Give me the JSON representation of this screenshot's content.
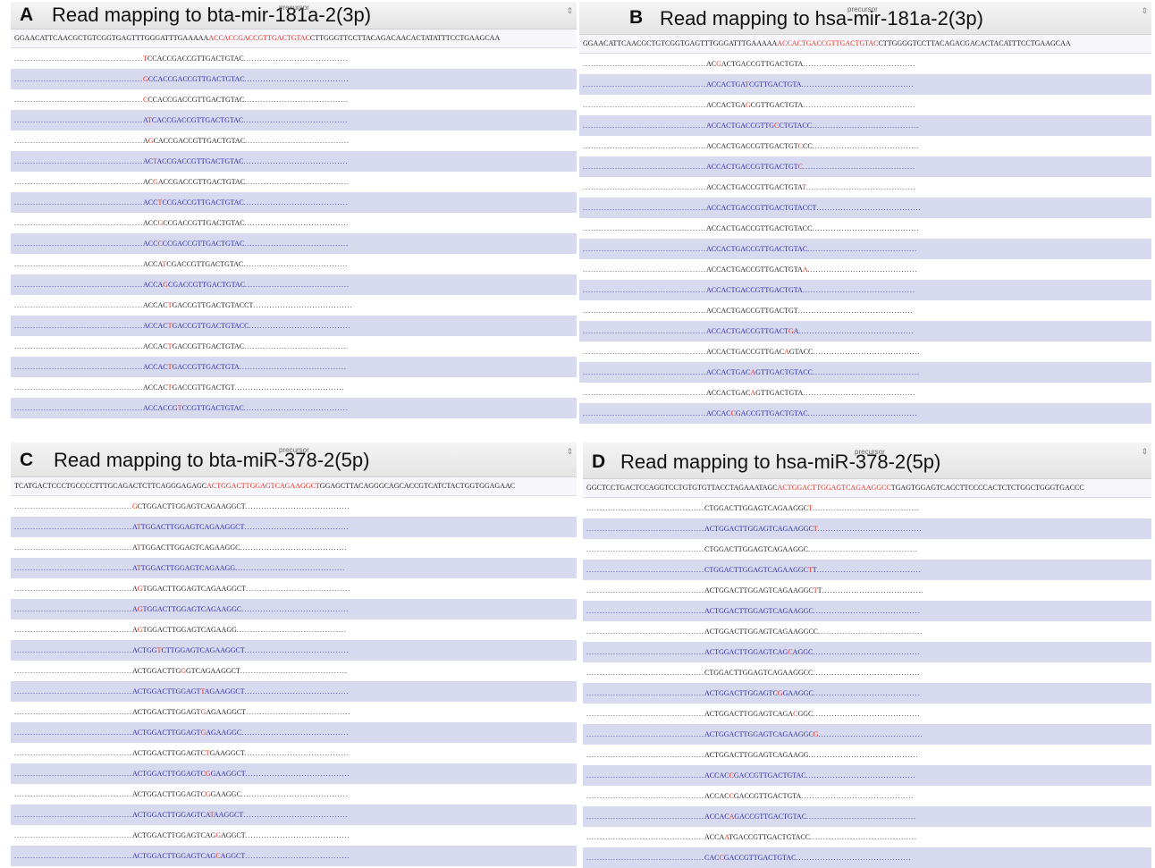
{
  "panels": [
    {
      "id": "A",
      "letter": "A",
      "title": "Read mapping to bta-mir-181a-2(3p)",
      "sub": "precursor",
      "ref": {
        "pre": "GGAACATTCAACGCTGTCGGTGAGTTTGGGATTTGAAAAA",
        "mature": "ACCACCGACCGTTGACTGTAC",
        "post": "CTTGGGTTCCTTACAGACAACACTATATTTCCTGAAGCAA"
      },
      "pad": 68,
      "rows": [
        [
          48,
          "",
          "T",
          "CCACCGACCGTTGACTGTAC"
        ],
        [
          48,
          "",
          "G",
          "CCACCGACCGTTGACTGTAC"
        ],
        [
          48,
          "",
          "C",
          "CCACCGACCGTTGACTGTAC"
        ],
        [
          48,
          "A",
          "T",
          "CACCGACCGTTGACTGTAC"
        ],
        [
          48,
          "A",
          "G",
          "CACCGACCGTTGACTGTAC"
        ],
        [
          48,
          "AC",
          "T",
          "ACCGACCGTTGACTGTAC"
        ],
        [
          48,
          "AC",
          "G",
          "ACCGACCGTTGACTGTAC"
        ],
        [
          48,
          "ACC",
          "T",
          "CCGACCGTTGACTGTAC"
        ],
        [
          48,
          "ACC",
          "G",
          "CCGACCGTTGACTGTAC"
        ],
        [
          48,
          "ACC",
          "C",
          "CCGACCGTTGACTGTAC"
        ],
        [
          48,
          "ACCA",
          "T",
          "CGACCGTTGACTGTAC"
        ],
        [
          48,
          "ACCA",
          "G",
          "CGACCGTTGACTGTAC"
        ],
        [
          48,
          "ACCAC",
          "T",
          "GACCGTTGACTGTACCT"
        ],
        [
          48,
          "ACCAC",
          "T",
          "GACCGTTGACTGTACC"
        ],
        [
          48,
          "ACCAC",
          "T",
          "GACCGTTGACTGTAC"
        ],
        [
          48,
          "ACCAC",
          "T",
          "GACCGTTGACTGTA"
        ],
        [
          48,
          "ACCAC",
          "T",
          "GACCGTTGACTGT"
        ],
        [
          48,
          "ACCACCG",
          "T",
          "CCGTTGACTGTAC"
        ]
      ]
    },
    {
      "id": "B",
      "letter": "B",
      "title": "Read mapping to hsa-mir-181a-2(3p)",
      "sub": "precursor",
      "ref": {
        "pre": "GGAACATTCAACGCTGTCGGTGAGTTTGGGATTTGAAAAA",
        "mature": "ACCACTGACCGTTGACTGTAC",
        "post": "CTTGGGGTCCTTACAGACGACACTACATTTCCTGAAGCAA"
      },
      "pad": 68,
      "rows": [
        [
          46,
          "AC",
          "G",
          "ACTGACCGTTGACTGTA"
        ],
        [
          46,
          "ACCACTGA",
          "T",
          "CGTTGACTGTA"
        ],
        [
          46,
          "ACCACTGA",
          "G",
          "CGTTGACTGTA"
        ],
        [
          46,
          "ACCACTGACCGTTG",
          "C",
          "CTGTACC"
        ],
        [
          46,
          "ACCACTGACCGTTGACTGT",
          "C",
          "CC"
        ],
        [
          46,
          "ACCACTGACCGTTGACTGT",
          "C",
          ""
        ],
        [
          46,
          "ACCACTGACCGTTGACTGTA",
          "T",
          ""
        ],
        [
          46,
          "ACCACTGACCGTTGACTGTACCT",
          "",
          ""
        ],
        [
          46,
          "ACCACTGACCGTTGACTGTACC",
          "",
          ""
        ],
        [
          46,
          "ACCACTGACCGTTGACTGTAC",
          "",
          ""
        ],
        [
          46,
          "ACCACTGACCGTTGACTGTA",
          "A",
          ""
        ],
        [
          46,
          "ACCACTGACCGTTGACTGTA",
          "",
          ""
        ],
        [
          46,
          "ACCACTGACCGTTGACTGT",
          "",
          ""
        ],
        [
          46,
          "ACCACTGACCGTTGACT",
          "G",
          "A"
        ],
        [
          46,
          "ACCACTGACCGTTGAC",
          "A",
          "GTACC"
        ],
        [
          46,
          "ACCACTGAC",
          "A",
          "GTTGACTGTACC"
        ],
        [
          46,
          "ACCACTGAC",
          "A",
          "GTTGACTGTA"
        ],
        [
          46,
          "ACCAC",
          "C",
          "GACCGTTGACTGTAC"
        ]
      ]
    },
    {
      "id": "C",
      "letter": "C",
      "title": "Read mapping to bta-miR-378-2(5p)",
      "sub": "precursor",
      "ref": {
        "pre": "TCATGACTCCCTGCCCCTTTGCAGACTCTTCAGGGAGAGC",
        "mature": "ACTGGACTTGGAGTCAGAAGGCT",
        "post": "GGAGCTTACAGGGCAGCACCGTCATCTACTGGTGGAGAAC"
      },
      "pad": 66,
      "rows": [
        [
          44,
          "",
          "G",
          "CTGGACTTGGAGTCAGAAGGCT"
        ],
        [
          44,
          "A",
          "T",
          "TGGACTTGGAGTCAGAAGGCT"
        ],
        [
          44,
          "A",
          "T",
          "TGGACTTGGAGTCAGAAGGC"
        ],
        [
          44,
          "A",
          "T",
          "TGGACTTGGAGTCAGAAGG"
        ],
        [
          44,
          "A",
          "G",
          "TGGACTTGGAGTCAGAAGGCT"
        ],
        [
          44,
          "A",
          "G",
          "TGGACTTGGAGTCAGAAGGC"
        ],
        [
          44,
          "A",
          "G",
          "TGGACTTGGAGTCAGAAGG"
        ],
        [
          44,
          "ACTGG",
          "T",
          "CTTGGAGTCAGAAGGCT"
        ],
        [
          44,
          "ACTGGACTTG",
          "G",
          "GTCAGAAGGCT"
        ],
        [
          44,
          "ACTGGACTTGGAGT",
          "T",
          "AGAAGGCT"
        ],
        [
          44,
          "ACTGGACTTGGAGT",
          "G",
          "AGAAGGCT"
        ],
        [
          44,
          "ACTGGACTTGGAGT",
          "G",
          "AGAAGGC"
        ],
        [
          44,
          "ACTGGACTTGGAGTC",
          "T",
          "GAAGGCT"
        ],
        [
          44,
          "ACTGGACTTGGAGTC",
          "G",
          "GAAGGCT"
        ],
        [
          44,
          "ACTGGACTTGGAGTC",
          "G",
          "GAAGGC"
        ],
        [
          44,
          "ACTGGACTTGGAGTCA",
          "T",
          "AAGGCT"
        ],
        [
          44,
          "ACTGGACTTGGAGTCAG",
          "G",
          "AGGCT"
        ],
        [
          44,
          "ACTGGACTTGGAGTCAG",
          "C",
          "AGGCT"
        ]
      ]
    },
    {
      "id": "D",
      "letter": "D",
      "title": "Read mapping to hsa-miR-378-2(5p)",
      "sub": "precursor",
      "ref": {
        "pre": "GGCTCCTGACTCCAGGTCCTGTGTGTTACCTAGAAATAGC",
        "mature": "ACTGGACTTGGAGTCAGAAGGCC",
        "post": "TGAGTGGAGTCACCTTCCCCACTCTCTGGCTGGGTGACCC"
      },
      "pad": 66,
      "rows": [
        [
          44,
          "CTGGACTTGGAGTCAGAAGGC",
          "T",
          ""
        ],
        [
          44,
          "ACTGGACTTGGAGTCAGAAGGC",
          "T",
          ""
        ],
        [
          44,
          "CTGGACTTGGAGTCAGAAGGC",
          "",
          ""
        ],
        [
          44,
          "CTGGACTTGGAGTCAGAAGGC",
          "T",
          "T"
        ],
        [
          44,
          "ACTGGACTTGGAGTCAGAAGGC",
          "T",
          "T"
        ],
        [
          44,
          "ACTGGACTTGGAGTCAGAAGGC",
          "",
          ""
        ],
        [
          44,
          "ACTGGACTTGGAGTCAGAAGGCC",
          "",
          ""
        ],
        [
          44,
          "ACTGGACTTGGAGTCAG",
          "C",
          "AGGC"
        ],
        [
          44,
          "CTGGACTTGGAGTCAGAAGGCC",
          "",
          ""
        ],
        [
          44,
          "ACTGGACTTGGAGTC",
          "G",
          "GAAGGC"
        ],
        [
          44,
          "ACTGGACTTGGAGTCAGA",
          "C",
          "GGC"
        ],
        [
          44,
          "ACTGGACTTGGAGTCAGAAGGC",
          "G",
          ""
        ],
        [
          44,
          "ACTGGACTTGGAGTCAGAAGG",
          "",
          ""
        ],
        [
          44,
          "ACCAC",
          "C",
          "GACCGTTGACTGTAC"
        ],
        [
          44,
          "ACCAC",
          "C",
          "GACCGTTGACTGTA"
        ],
        [
          44,
          "ACCAC",
          "A",
          "GACCGTTGACTGTAC"
        ],
        [
          44,
          "ACCA",
          "A",
          "TGACCGTTGACTGTACC"
        ],
        [
          44,
          "CAC",
          "C",
          "GACCGTTGACTGTAC"
        ]
      ]
    }
  ]
}
